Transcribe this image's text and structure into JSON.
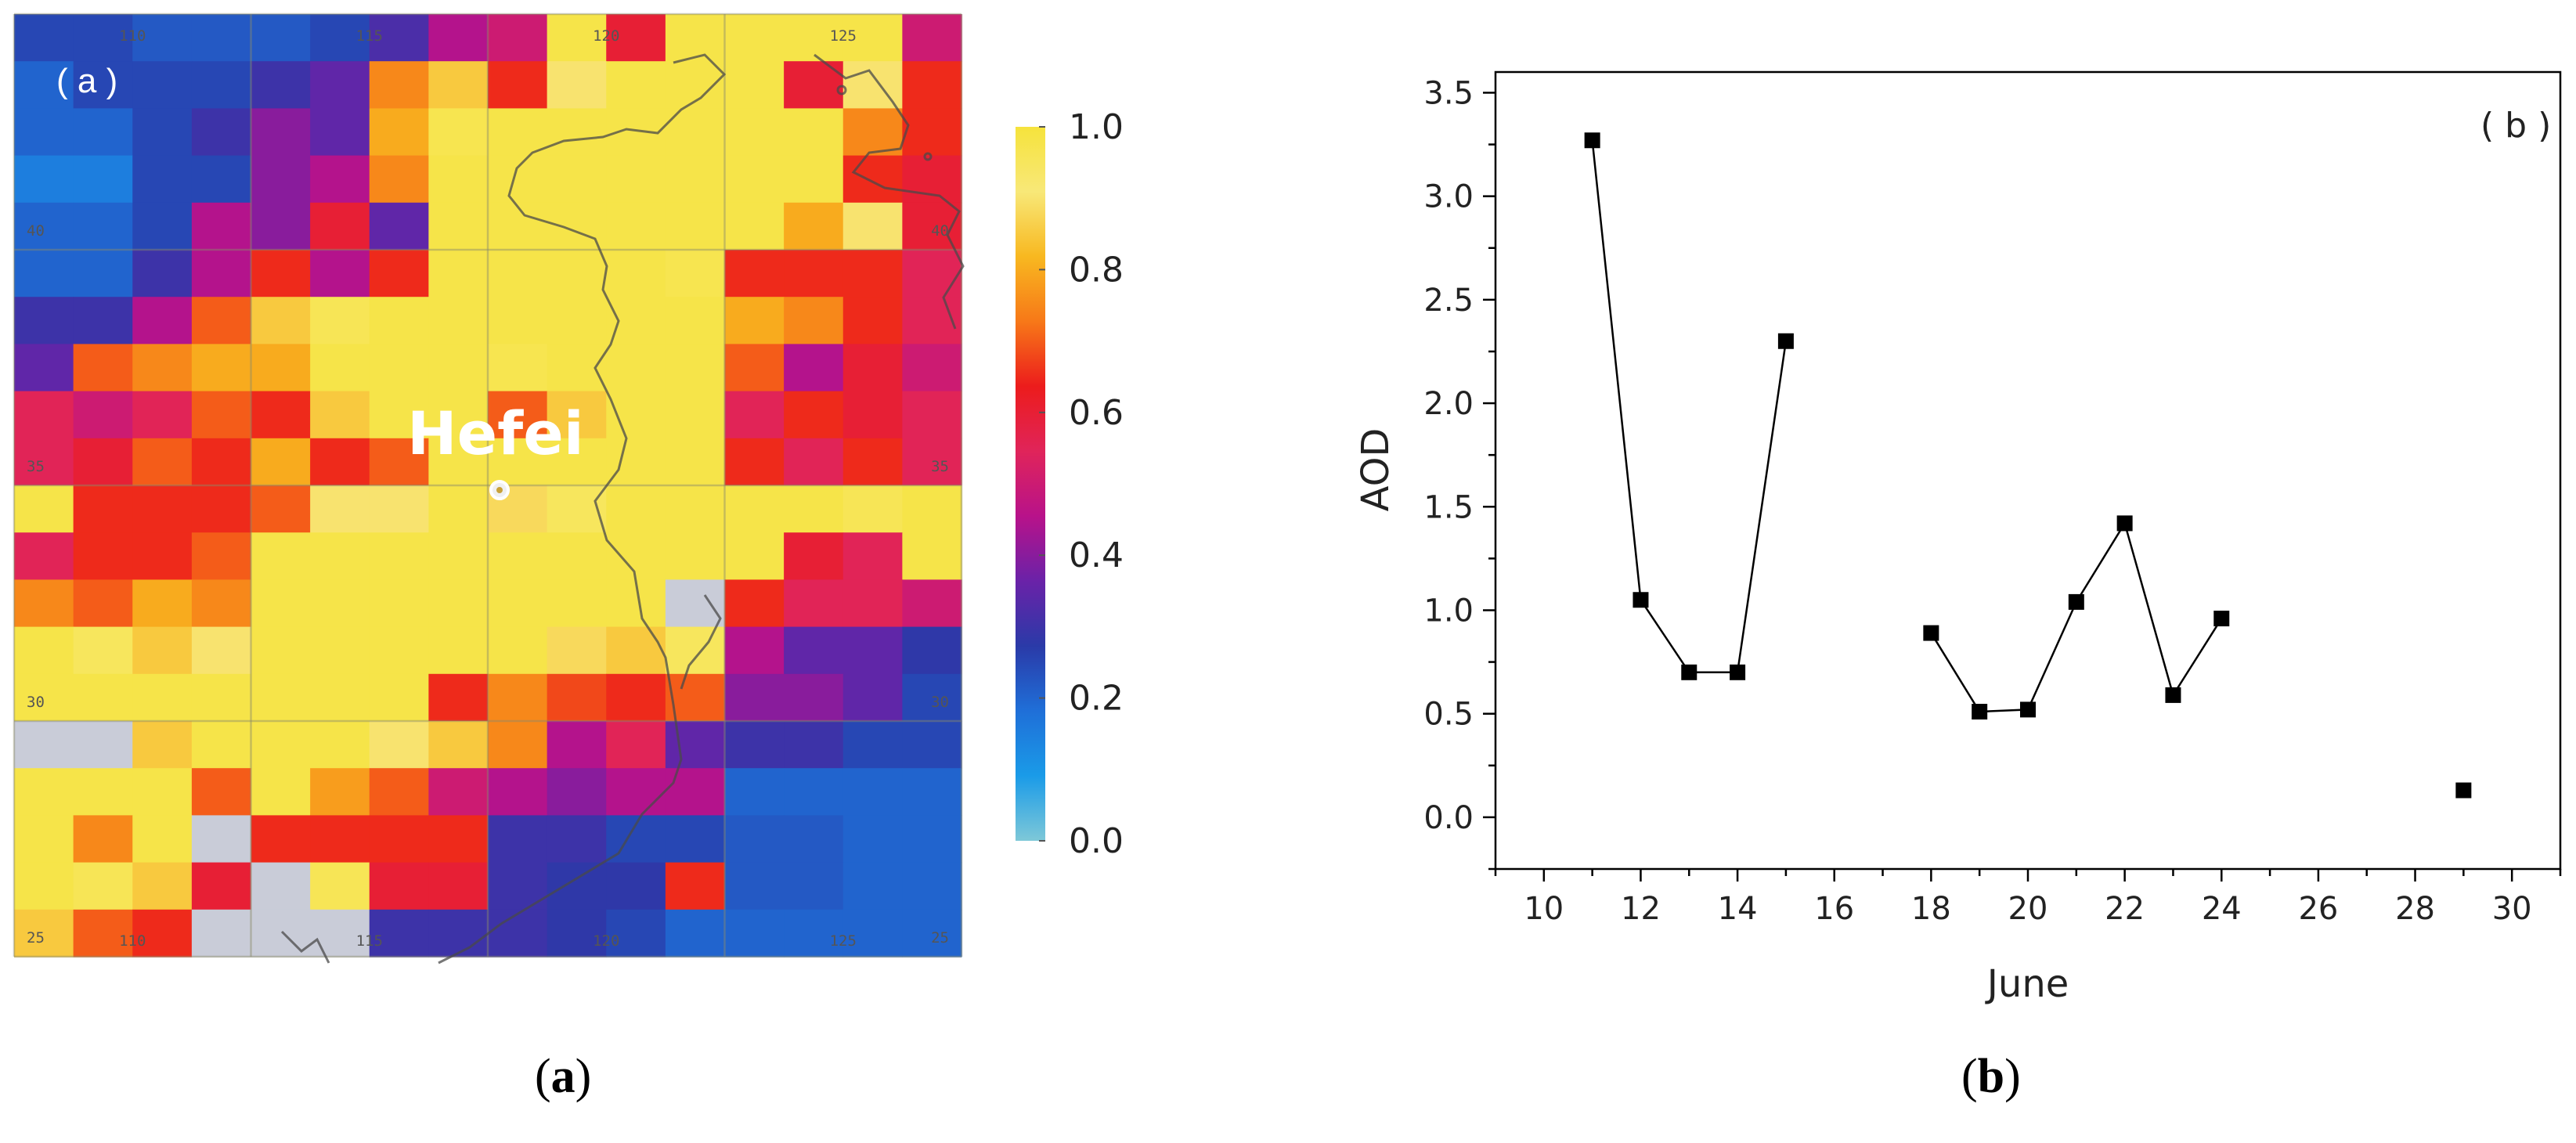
{
  "captions": {
    "a": "a",
    "b": "b"
  },
  "map": {
    "panel_label": "( a )",
    "city_label": "Hefei",
    "lon_ticks": [
      "110",
      "115",
      "120",
      "125"
    ],
    "lat_ticks": [
      "40",
      "35",
      "30",
      "25"
    ],
    "colorbar_ticks": [
      "1.0",
      "0.8",
      "0.6",
      "0.4",
      "0.2",
      "0.0"
    ],
    "colorbar_range": [
      0.0,
      1.0
    ],
    "colormap_stops": [
      "#7ec8d8",
      "#1a9be8",
      "#1f6fd8",
      "#2a3aa8",
      "#6a22a8",
      "#b8128a",
      "#e0245a",
      "#ec1c1c",
      "#f77818",
      "#f8b820",
      "#f8e878",
      "#f6e33c"
    ],
    "grid": [
      [
        0.25,
        0.25,
        0.22,
        0.22,
        0.22,
        0.25,
        0.32,
        0.45,
        0.5,
        0.98,
        0.6,
        0.98,
        0.98,
        0.98,
        0.98,
        0.5
      ],
      [
        0.2,
        0.25,
        0.25,
        0.25,
        0.3,
        0.35,
        0.75,
        0.85,
        0.65,
        0.9,
        0.98,
        0.98,
        0.98,
        0.6,
        0.9,
        0.65
      ],
      [
        0.2,
        0.2,
        0.25,
        0.3,
        0.4,
        0.35,
        0.8,
        0.97,
        0.98,
        0.98,
        0.98,
        0.98,
        0.98,
        0.98,
        0.75,
        0.65
      ],
      [
        0.15,
        0.15,
        0.25,
        0.25,
        0.4,
        0.45,
        0.75,
        0.98,
        0.98,
        0.98,
        0.98,
        0.98,
        0.98,
        0.98,
        0.65,
        0.6
      ],
      [
        0.2,
        0.2,
        0.25,
        0.45,
        0.4,
        0.6,
        0.35,
        0.98,
        0.98,
        0.98,
        0.98,
        0.98,
        0.98,
        0.8,
        0.9,
        0.6
      ],
      [
        0.2,
        0.2,
        0.3,
        0.45,
        0.65,
        0.45,
        0.65,
        0.98,
        0.98,
        0.98,
        0.98,
        0.97,
        0.65,
        0.65,
        0.65,
        0.55
      ],
      [
        0.3,
        0.3,
        0.45,
        0.7,
        0.85,
        0.96,
        0.98,
        0.98,
        0.98,
        0.98,
        0.98,
        0.98,
        0.8,
        0.75,
        0.65,
        0.55
      ],
      [
        0.35,
        0.7,
        0.75,
        0.8,
        0.8,
        0.98,
        0.98,
        0.98,
        0.97,
        0.98,
        0.98,
        0.98,
        0.7,
        0.45,
        0.6,
        0.5
      ],
      [
        0.55,
        0.5,
        0.55,
        0.7,
        0.65,
        0.85,
        0.98,
        0.98,
        0.7,
        0.85,
        0.98,
        0.98,
        0.55,
        0.65,
        0.6,
        0.55
      ],
      [
        0.55,
        0.6,
        0.7,
        0.65,
        0.8,
        0.65,
        0.7,
        0.98,
        0.98,
        0.98,
        0.98,
        0.98,
        0.65,
        0.55,
        0.65,
        0.55
      ],
      [
        0.98,
        0.65,
        0.65,
        0.65,
        0.7,
        0.9,
        0.9,
        0.98,
        0.88,
        0.95,
        0.98,
        0.98,
        0.98,
        0.98,
        0.96,
        0.98
      ],
      [
        0.55,
        0.65,
        0.65,
        0.7,
        0.98,
        0.98,
        0.98,
        0.98,
        0.98,
        0.98,
        0.98,
        0.98,
        0.98,
        0.6,
        0.55,
        0.98
      ],
      [
        0.75,
        0.7,
        0.8,
        0.75,
        0.98,
        0.98,
        0.98,
        0.98,
        0.98,
        0.98,
        0.98,
        null,
        0.65,
        0.55,
        0.55,
        0.5
      ],
      [
        0.98,
        0.95,
        0.85,
        0.9,
        0.98,
        0.98,
        0.98,
        0.98,
        0.98,
        0.88,
        0.85,
        0.95,
        0.45,
        0.35,
        0.35,
        0.28
      ],
      [
        0.98,
        0.98,
        0.98,
        0.98,
        0.98,
        0.98,
        0.98,
        0.65,
        0.75,
        0.68,
        0.65,
        0.7,
        0.4,
        0.4,
        0.35,
        0.25
      ],
      [
        null,
        null,
        0.85,
        0.98,
        0.98,
        0.98,
        0.9,
        0.85,
        0.75,
        0.45,
        0.55,
        0.35,
        0.3,
        0.3,
        0.25,
        0.25
      ],
      [
        0.98,
        0.98,
        0.98,
        0.7,
        0.98,
        0.78,
        0.7,
        0.5,
        0.45,
        0.4,
        0.45,
        0.45,
        0.2,
        0.2,
        0.2,
        0.2
      ],
      [
        0.98,
        0.75,
        0.98,
        null,
        0.65,
        0.65,
        0.65,
        0.65,
        0.3,
        0.3,
        0.25,
        0.25,
        0.22,
        0.22,
        0.2,
        0.2
      ],
      [
        0.98,
        0.96,
        0.85,
        0.6,
        null,
        0.96,
        0.6,
        0.6,
        0.3,
        0.28,
        0.28,
        0.65,
        0.22,
        0.22,
        0.2,
        0.2
      ],
      [
        0.85,
        0.7,
        0.65,
        null,
        null,
        null,
        0.3,
        0.3,
        0.3,
        0.28,
        0.25,
        0.2,
        0.2,
        0.2,
        0.2,
        0.2
      ]
    ]
  },
  "chart": {
    "panel_label": "( b )",
    "xlabel": "June",
    "ylabel": "AOD",
    "x_ticks": [
      "10",
      "12",
      "14",
      "16",
      "18",
      "20",
      "22",
      "24",
      "26",
      "28",
      "30"
    ],
    "y_ticks": [
      "0.0",
      "0.5",
      "1.0",
      "1.5",
      "2.0",
      "2.5",
      "3.0",
      "3.5"
    ]
  },
  "chart_data": {
    "type": "line",
    "xlabel": "June",
    "ylabel": "AOD",
    "xlim": [
      9,
      31
    ],
    "ylim": [
      -0.25,
      3.6
    ],
    "grid": false,
    "marker": "square",
    "series": [
      {
        "points": [
          [
            11,
            3.27
          ],
          [
            12,
            1.05
          ],
          [
            13,
            0.7
          ],
          [
            14,
            0.7
          ],
          [
            15,
            2.3
          ]
        ]
      },
      {
        "points": [
          [
            18,
            0.89
          ],
          [
            19,
            0.51
          ],
          [
            20,
            0.52
          ],
          [
            21,
            1.04
          ],
          [
            22,
            1.42
          ],
          [
            23,
            0.59
          ],
          [
            24,
            0.96
          ]
        ]
      },
      {
        "points": [
          [
            29,
            0.13
          ]
        ]
      }
    ]
  }
}
